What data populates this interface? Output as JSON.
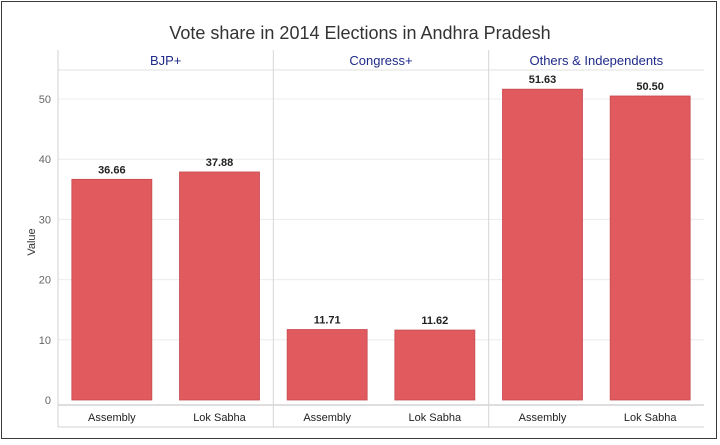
{
  "chart_data": {
    "type": "bar",
    "title": "Vote share in 2014 Elections in Andhra Pradesh",
    "ylabel": "Value",
    "ylim": [
      0,
      60
    ],
    "yticks": [
      0,
      10,
      20,
      30,
      40,
      50
    ],
    "grid": true,
    "bar_color": "#e05a5e",
    "header_color": "#1f2a8a",
    "panels": [
      {
        "name": "BJP+",
        "categories": [
          "Assembly",
          "Lok Sabha"
        ],
        "values": [
          36.66,
          37.88
        ],
        "labels": [
          "36.66",
          "37.88"
        ]
      },
      {
        "name": "Congress+",
        "categories": [
          "Assembly",
          "Lok Sabha"
        ],
        "values": [
          11.71,
          11.62
        ],
        "labels": [
          "11.71",
          "11.62"
        ]
      },
      {
        "name": "Others & Independents",
        "categories": [
          "Assembly",
          "Lok Sabha"
        ],
        "values": [
          51.63,
          50.5
        ],
        "labels": [
          "51.63",
          "50.50"
        ]
      }
    ]
  }
}
